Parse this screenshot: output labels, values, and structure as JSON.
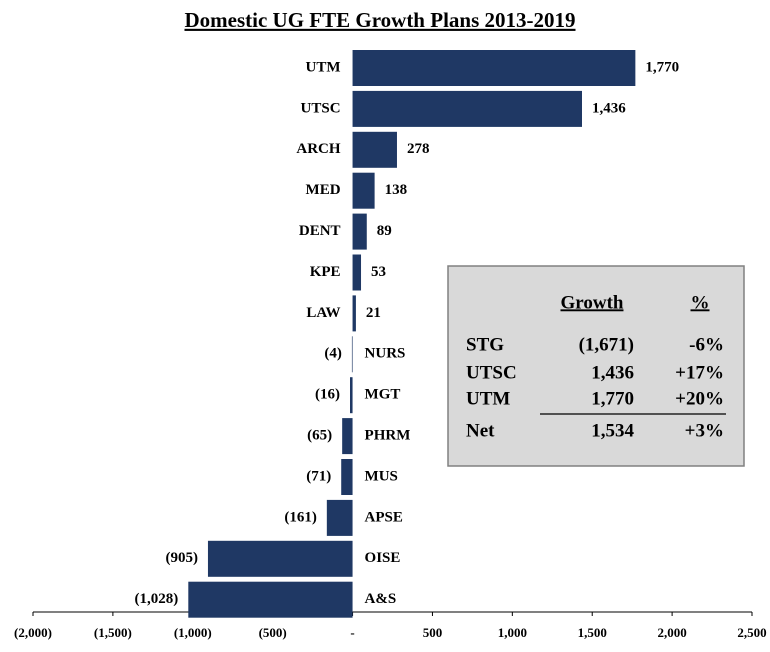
{
  "chart_data": {
    "type": "hbar",
    "title": "Domestic UG FTE Growth Plans 2013-2019",
    "categories": [
      "UTM",
      "UTSC",
      "ARCH",
      "MED",
      "DENT",
      "KPE",
      "LAW",
      "NURS",
      "MGT",
      "PHRM",
      "MUS",
      "APSE",
      "OISE",
      "A&S"
    ],
    "values": [
      1770,
      1436,
      278,
      138,
      89,
      53,
      21,
      -4,
      -16,
      -65,
      -71,
      -161,
      -905,
      -1028
    ],
    "value_labels": [
      "1,770",
      "1,436",
      "278",
      "138",
      "89",
      "53",
      "21",
      "(4)",
      "(16)",
      "(65)",
      "(71)",
      "(161)",
      "(905)",
      "(1,028)"
    ],
    "color": "#1f3864",
    "xlim": [
      -2000,
      2500
    ],
    "xticks": [
      {
        "value": -2000,
        "label": "(2,000)"
      },
      {
        "value": -1500,
        "label": "(1,500)"
      },
      {
        "value": -1000,
        "label": "(1,000)"
      },
      {
        "value": -500,
        "label": "(500)"
      },
      {
        "value": 0,
        "label": "-"
      },
      500,
      {
        "value": 1000,
        "label": "1,000"
      },
      {
        "value": 1500,
        "label": "1,500"
      },
      {
        "value": 2000,
        "label": "2,000"
      },
      {
        "value": 2500,
        "label": "2,500"
      }
    ],
    "inset_table": {
      "columns": [
        "Growth",
        "%"
      ],
      "rows": [
        [
          "STG",
          "(1,671)",
          "-6%"
        ],
        [
          "UTSC",
          "1,436",
          "+17%"
        ],
        [
          "UTM",
          "1,770",
          "+20%"
        ],
        [
          "Net",
          "1,534",
          "+3%"
        ]
      ]
    }
  }
}
